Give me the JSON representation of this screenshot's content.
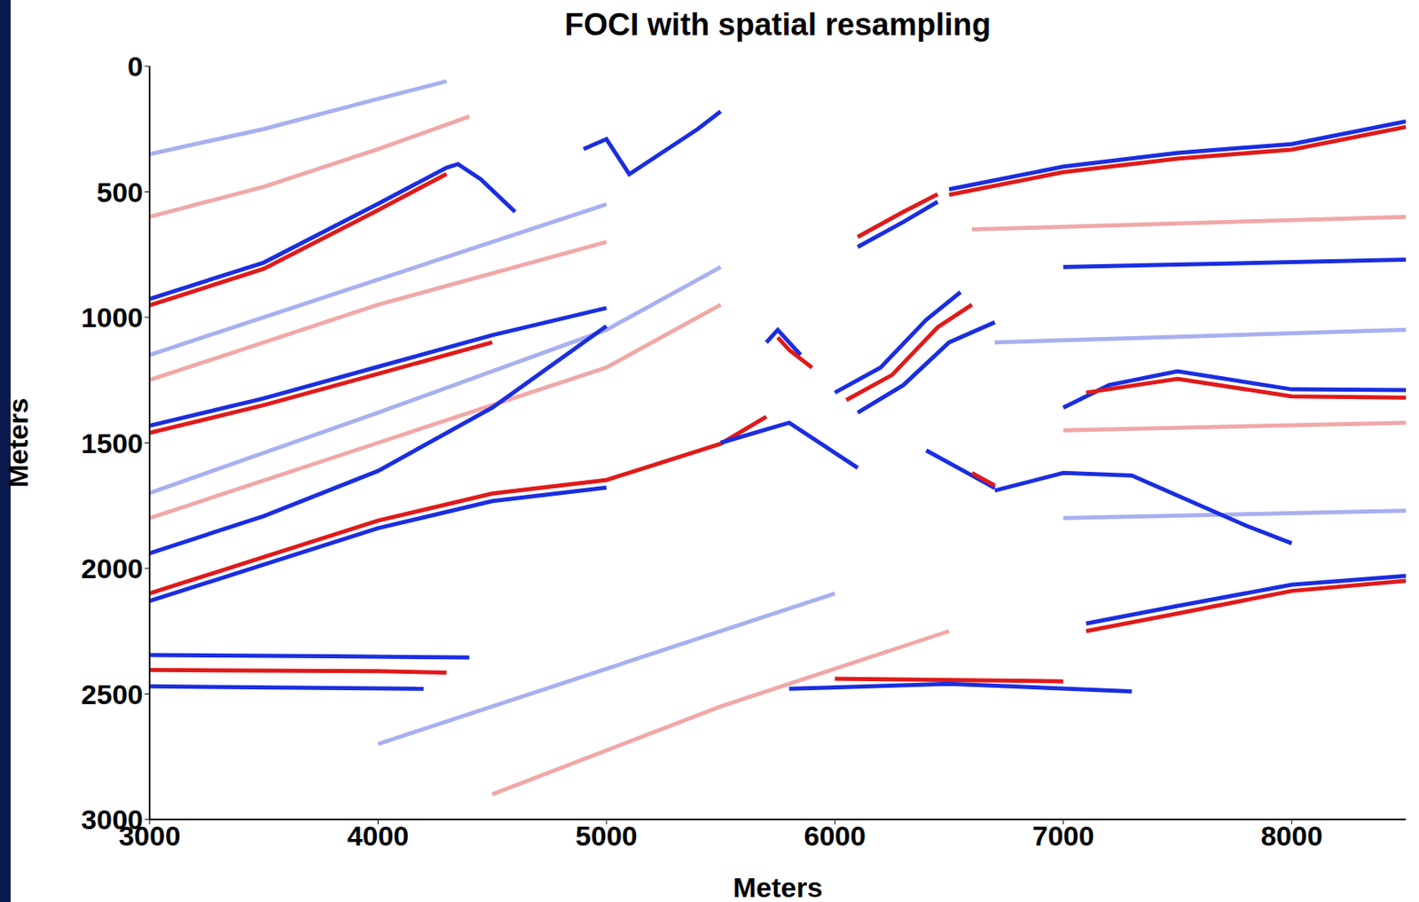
{
  "chart_data": {
    "type": "line",
    "title": "FOCI with spatial resampling",
    "xlabel": "Meters",
    "ylabel": "Meters",
    "xlim": [
      3000,
      8500
    ],
    "xticks": [
      3000,
      4000,
      5000,
      6000,
      7000,
      8000
    ],
    "ylim": [
      0,
      3000
    ],
    "yticks": [
      0,
      500,
      1000,
      1500,
      2000,
      2500,
      3000
    ],
    "series": [
      {
        "color": "#f0a8a8",
        "x": [
          3000,
          3500,
          4000,
          4400
        ],
        "values": [
          600,
          480,
          330,
          200
        ]
      },
      {
        "color": "#a8b0f0",
        "x": [
          3000,
          3500,
          4000,
          4300
        ],
        "values": [
          350,
          250,
          130,
          60
        ]
      },
      {
        "color": "#a8b0f0",
        "x": [
          3000,
          4000,
          5000
        ],
        "values": [
          1150,
          850,
          550
        ]
      },
      {
        "color": "#f0a8a8",
        "x": [
          3000,
          4000,
          5000
        ],
        "values": [
          1250,
          950,
          700
        ]
      },
      {
        "color": "#a8b0f0",
        "x": [
          3000,
          4000,
          5000,
          5500
        ],
        "values": [
          1700,
          1380,
          1050,
          800
        ]
      },
      {
        "color": "#f0a8a8",
        "x": [
          3000,
          4000,
          5000,
          5500
        ],
        "values": [
          1800,
          1500,
          1200,
          950
        ]
      },
      {
        "color": "#a8b0f0",
        "x": [
          4000,
          5000,
          6000
        ],
        "values": [
          2700,
          2400,
          2100
        ]
      },
      {
        "color": "#f0a8a8",
        "x": [
          4500,
          5500,
          6500
        ],
        "values": [
          2900,
          2550,
          2250
        ]
      },
      {
        "color": "#f0a8a8",
        "x": [
          6600,
          8500
        ],
        "values": [
          650,
          600
        ]
      },
      {
        "color": "#a8b0f0",
        "x": [
          6700,
          8500
        ],
        "values": [
          1100,
          1050
        ]
      },
      {
        "color": "#a8b0f0",
        "x": [
          7000,
          8500
        ],
        "values": [
          1800,
          1770
        ]
      },
      {
        "color": "#f0a8a8",
        "x": [
          7000,
          8500
        ],
        "values": [
          1450,
          1420
        ]
      },
      {
        "color": "#1a2ee0",
        "x": [
          3000,
          3500,
          4000,
          4300,
          4350,
          4450,
          4600
        ],
        "values": [
          927,
          782,
          548,
          404,
          390,
          450,
          580
        ]
      },
      {
        "color": "#e01a1a",
        "x": [
          3000,
          3500,
          4000,
          4300
        ],
        "values": [
          952,
          807,
          573,
          429
        ]
      },
      {
        "color": "#1a2ee0",
        "x": [
          3000,
          3500,
          4000,
          4500,
          5000
        ],
        "values": [
          1432,
          1323,
          1197,
          1071,
          963
        ]
      },
      {
        "color": "#e01a1a",
        "x": [
          3000,
          3500,
          4000,
          4500
        ],
        "values": [
          1460,
          1350,
          1225,
          1100
        ]
      },
      {
        "color": "#1a2ee0",
        "x": [
          3000,
          3500,
          4000,
          4500,
          5000
        ],
        "values": [
          1940,
          1792,
          1612,
          1360,
          1035
        ]
      },
      {
        "color": "#e01a1a",
        "x": [
          3000,
          3500,
          4000,
          4500,
          5000,
          5500,
          5700
        ],
        "values": [
          2100,
          1955,
          1810,
          1702,
          1648,
          1504,
          1396
        ]
      },
      {
        "color": "#1a2ee0",
        "x": [
          3000,
          3500,
          4000,
          4500,
          5000
        ],
        "values": [
          2130,
          1985,
          1840,
          1732,
          1678
        ]
      },
      {
        "color": "#1a2ee0",
        "x": [
          3000,
          3800,
          4400
        ],
        "values": [
          2345,
          2350,
          2355
        ]
      },
      {
        "color": "#e01a1a",
        "x": [
          3000,
          4000,
          4300
        ],
        "values": [
          2405,
          2410,
          2415
        ]
      },
      {
        "color": "#1a2ee0",
        "x": [
          3000,
          4200
        ],
        "values": [
          2470,
          2480
        ]
      },
      {
        "color": "#1a2ee0",
        "x": [
          4900,
          5000,
          5100,
          5400,
          5500
        ],
        "values": [
          330,
          290,
          430,
          250,
          180
        ]
      },
      {
        "color": "#1a2ee0",
        "x": [
          5700,
          5750,
          5850
        ],
        "values": [
          1100,
          1050,
          1150
        ]
      },
      {
        "color": "#e01a1a",
        "x": [
          5750,
          5800,
          5900
        ],
        "values": [
          1080,
          1130,
          1200
        ]
      },
      {
        "color": "#1a2ee0",
        "x": [
          5500,
          5800,
          6100
        ],
        "values": [
          1500,
          1420,
          1600
        ]
      },
      {
        "color": "#1a2ee0",
        "x": [
          6400,
          6600,
          6700
        ],
        "values": [
          1530,
          1630,
          1680
        ]
      },
      {
        "color": "#e01a1a",
        "x": [
          6600,
          6700
        ],
        "values": [
          1620,
          1670
        ]
      },
      {
        "color": "#1a2ee0",
        "x": [
          6000,
          6200,
          6400,
          6550
        ],
        "values": [
          1300,
          1200,
          1010,
          900
        ]
      },
      {
        "color": "#e01a1a",
        "x": [
          6050,
          6250,
          6450,
          6600
        ],
        "values": [
          1330,
          1230,
          1040,
          950
        ]
      },
      {
        "color": "#1a2ee0",
        "x": [
          6100,
          6300,
          6500,
          6700
        ],
        "values": [
          1380,
          1270,
          1100,
          1020
        ]
      },
      {
        "color": "#1a2ee0",
        "x": [
          6100,
          6300,
          6450
        ],
        "values": [
          720,
          620,
          540
        ]
      },
      {
        "color": "#e01a1a",
        "x": [
          6100,
          6300,
          6450
        ],
        "values": [
          680,
          580,
          510
        ]
      },
      {
        "color": "#1a2ee0",
        "x": [
          6500,
          7000,
          7500,
          8000,
          8500
        ],
        "values": [
          490,
          400,
          345,
          310,
          220
        ]
      },
      {
        "color": "#e01a1a",
        "x": [
          6500,
          7000,
          7500,
          8000,
          8500
        ],
        "values": [
          512,
          422,
          368,
          332,
          242
        ]
      },
      {
        "color": "#1a2ee0",
        "x": [
          7000,
          7500,
          8000,
          8500
        ],
        "values": [
          800,
          790,
          780,
          770
        ]
      },
      {
        "color": "#1a2ee0",
        "x": [
          7000,
          7200,
          7500,
          8000,
          8500
        ],
        "values": [
          1360,
          1270,
          1215,
          1287,
          1290
        ]
      },
      {
        "color": "#e01a1a",
        "x": [
          7100,
          7500,
          8000,
          8500
        ],
        "values": [
          1300,
          1245,
          1315,
          1320
        ]
      },
      {
        "color": "#1a2ee0",
        "x": [
          6700,
          7000,
          7300,
          7800,
          8000
        ],
        "values": [
          1690,
          1620,
          1630,
          1830,
          1900
        ]
      },
      {
        "color": "#e01a1a",
        "x": [
          7100,
          7500,
          8000,
          8500
        ],
        "values": [
          2250,
          2180,
          2090,
          2050
        ]
      },
      {
        "color": "#1a2ee0",
        "x": [
          7100,
          7500,
          8000,
          8500
        ],
        "values": [
          2220,
          2150,
          2065,
          2030
        ]
      },
      {
        "color": "#1a2ee0",
        "x": [
          5800,
          6500,
          7300
        ],
        "values": [
          2480,
          2460,
          2490
        ]
      },
      {
        "color": "#e01a1a",
        "x": [
          6000,
          7000
        ],
        "values": [
          2440,
          2450
        ]
      }
    ]
  }
}
